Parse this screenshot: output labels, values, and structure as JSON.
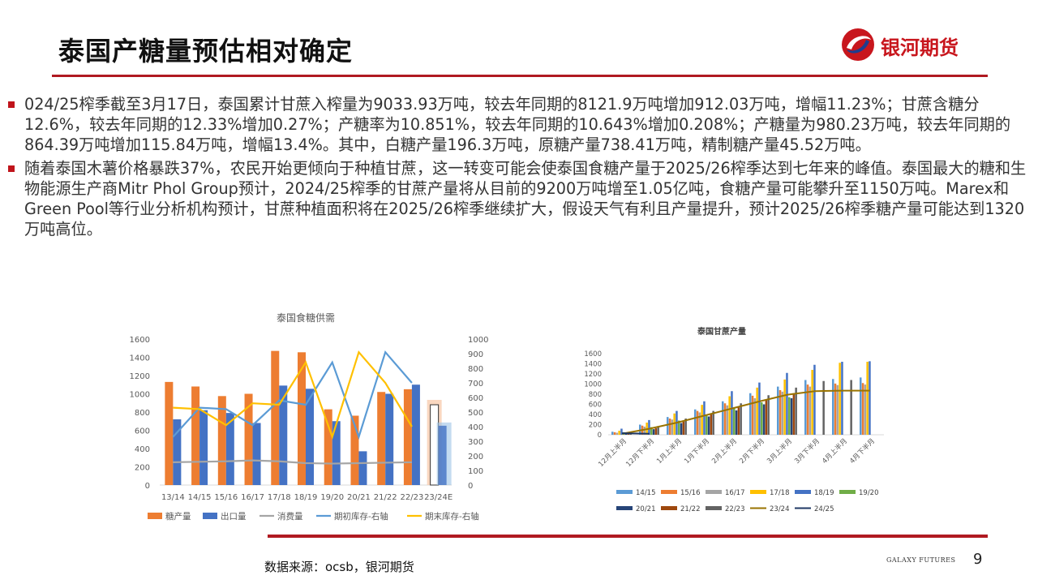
{
  "header": {
    "title": "泰国产糖量预估相对确定",
    "logo_text": "银河期货",
    "brand_color": "#c8161d"
  },
  "bullets": [
    "024/25榨季截至3月17日，泰国累计甘蔗入榨量为9033.93万吨，较去年同期的8121.9万吨增加912.03万吨，增幅11.23%；甘蔗含糖分12.6%，较去年同期的12.33%增加0.27%；产糖率为10.851%，较去年同期的10.643%增加0.208%；产糖量为980.23万吨，较去年同期的864.39万吨增加115.84万吨，增幅13.4%。其中，白糖产量196.3万吨，原糖产量738.41万吨，精制糖产量45.52万吨。",
    "随着泰国木薯价格暴跌37%，农民开始更倾向于种植甘蔗，这一转变可能会使泰国食糖产量于2025/26榨季达到七年来的峰值。泰国最大的糖和生物能源生产商Mitr Phol Group预计，2024/25榨季的甘蔗产量将从目前的9200万吨增至1.05亿吨，食糖产量可能攀升至1150万吨。Marex和Green Pool等行业分析机构预计，甘蔗种植面积将在2025/26榨季继续扩大，假设天气有利且产量提升，预计2025/26榨季糖产量可能达到1320万吨高位。"
  ],
  "chart_data": [
    {
      "type": "bar",
      "title": "泰国食糖供需",
      "categories": [
        "13/14",
        "14/15",
        "15/16",
        "16/17",
        "17/18",
        "18/19",
        "19/20",
        "20/21",
        "21/22",
        "22/23",
        "23/24E"
      ],
      "ylim": [
        0,
        1600
      ],
      "y_ticks": [
        "0",
        "200",
        "400",
        "600",
        "800",
        "1000",
        "1200",
        "1400",
        "1600"
      ],
      "y2lim": [
        0,
        1000
      ],
      "y2_ticks": [
        "0",
        "100",
        "200",
        "300",
        "400",
        "500",
        "600",
        "700",
        "800",
        "900",
        "1000"
      ],
      "series": [
        {
          "name": "糖产量",
          "kind": "bar",
          "axis": "left",
          "color": "#ed7d31",
          "values": [
            1130,
            1080,
            975,
            1000,
            1470,
            1455,
            830,
            760,
            1020,
            1050,
            880
          ]
        },
        {
          "name": "出口量",
          "kind": "bar",
          "axis": "left",
          "color": "#4472c4",
          "values": [
            720,
            820,
            790,
            680,
            1090,
            1055,
            700,
            370,
            1000,
            1100,
            650
          ]
        },
        {
          "name": "消费量",
          "kind": "line",
          "axis": "left",
          "color": "#a5a5a5",
          "values": [
            250,
            255,
            260,
            270,
            260,
            240,
            235,
            240,
            245,
            250,
            null
          ]
        },
        {
          "name": "期初库存-右轴",
          "kind": "line",
          "axis": "right",
          "color": "#5b9bd5",
          "values": [
            330,
            530,
            520,
            410,
            580,
            550,
            840,
            330,
            910,
            700,
            null
          ]
        },
        {
          "name": "期末库存-右轴",
          "kind": "line",
          "axis": "right",
          "color": "#ffc000",
          "values": [
            530,
            520,
            410,
            560,
            550,
            840,
            330,
            910,
            700,
            400,
            null
          ]
        }
      ],
      "legend_position": "bottom"
    },
    {
      "type": "bar",
      "title": "泰国甘蔗产量",
      "categories": [
        "12月上半月",
        "12月下半月",
        "1月上半月",
        "1月下半月",
        "2月上半月",
        "2月下半月",
        "3月上半月",
        "3月下半月",
        "4月上半月",
        "4月下半月"
      ],
      "ylim": [
        0,
        1600
      ],
      "y_ticks": [
        "0",
        "200",
        "400",
        "600",
        "800",
        "1000",
        "1200",
        "1400",
        "1600"
      ],
      "series": [
        {
          "name": "14/15",
          "kind": "bar",
          "color": "#5b9bd5",
          "values": [
            60,
            200,
            350,
            500,
            660,
            820,
            950,
            1080,
            1100,
            1130
          ]
        },
        {
          "name": "15/16",
          "kind": "bar",
          "color": "#ed7d31",
          "values": [
            50,
            180,
            320,
            470,
            620,
            770,
            880,
            990,
            1010,
            1020
          ]
        },
        {
          "name": "16/17",
          "kind": "bar",
          "color": "#a5a5a5",
          "values": [
            40,
            160,
            300,
            440,
            580,
            720,
            850,
            950,
            980,
            990
          ]
        },
        {
          "name": "17/18",
          "kind": "bar",
          "color": "#ffc000",
          "values": [
            80,
            240,
            420,
            590,
            760,
            930,
            1090,
            1280,
            1420,
            1440
          ]
        },
        {
          "name": "18/19",
          "kind": "bar",
          "color": "#4472c4",
          "values": [
            120,
            290,
            470,
            660,
            860,
            1030,
            1220,
            1380,
            1440,
            1450
          ]
        },
        {
          "name": "19/20",
          "kind": "bar",
          "color": "#70ad47",
          "values": [
            50,
            150,
            280,
            400,
            520,
            640,
            740,
            null,
            null,
            null
          ]
        },
        {
          "name": "20/21",
          "kind": "bar",
          "color": "#264478",
          "values": [
            30,
            110,
            230,
            360,
            480,
            600,
            720,
            null,
            null,
            null
          ]
        },
        {
          "name": "21/22",
          "kind": "bar",
          "color": "#9e480e",
          "values": [
            40,
            130,
            260,
            400,
            540,
            680,
            820,
            null,
            null,
            null
          ]
        },
        {
          "name": "22/23",
          "kind": "bar",
          "color": "#636363",
          "values": [
            60,
            170,
            320,
            470,
            620,
            780,
            930,
            1060,
            1080,
            null
          ]
        },
        {
          "name": "23/24",
          "kind": "line",
          "color": "#997300",
          "values": [
            20,
            120,
            240,
            380,
            520,
            660,
            790,
            860,
            870,
            870
          ]
        },
        {
          "name": "24/25",
          "kind": "line",
          "color": "#1f3864",
          "values": [
            30,
            20,
            null,
            null,
            null,
            null,
            null,
            null,
            null,
            null
          ]
        }
      ],
      "legend_position": "bottom"
    }
  ],
  "footer": {
    "source": "数据来源：ocsb，银河期货",
    "brand_en": "GALAXY FUTURES",
    "page_number": "9"
  }
}
